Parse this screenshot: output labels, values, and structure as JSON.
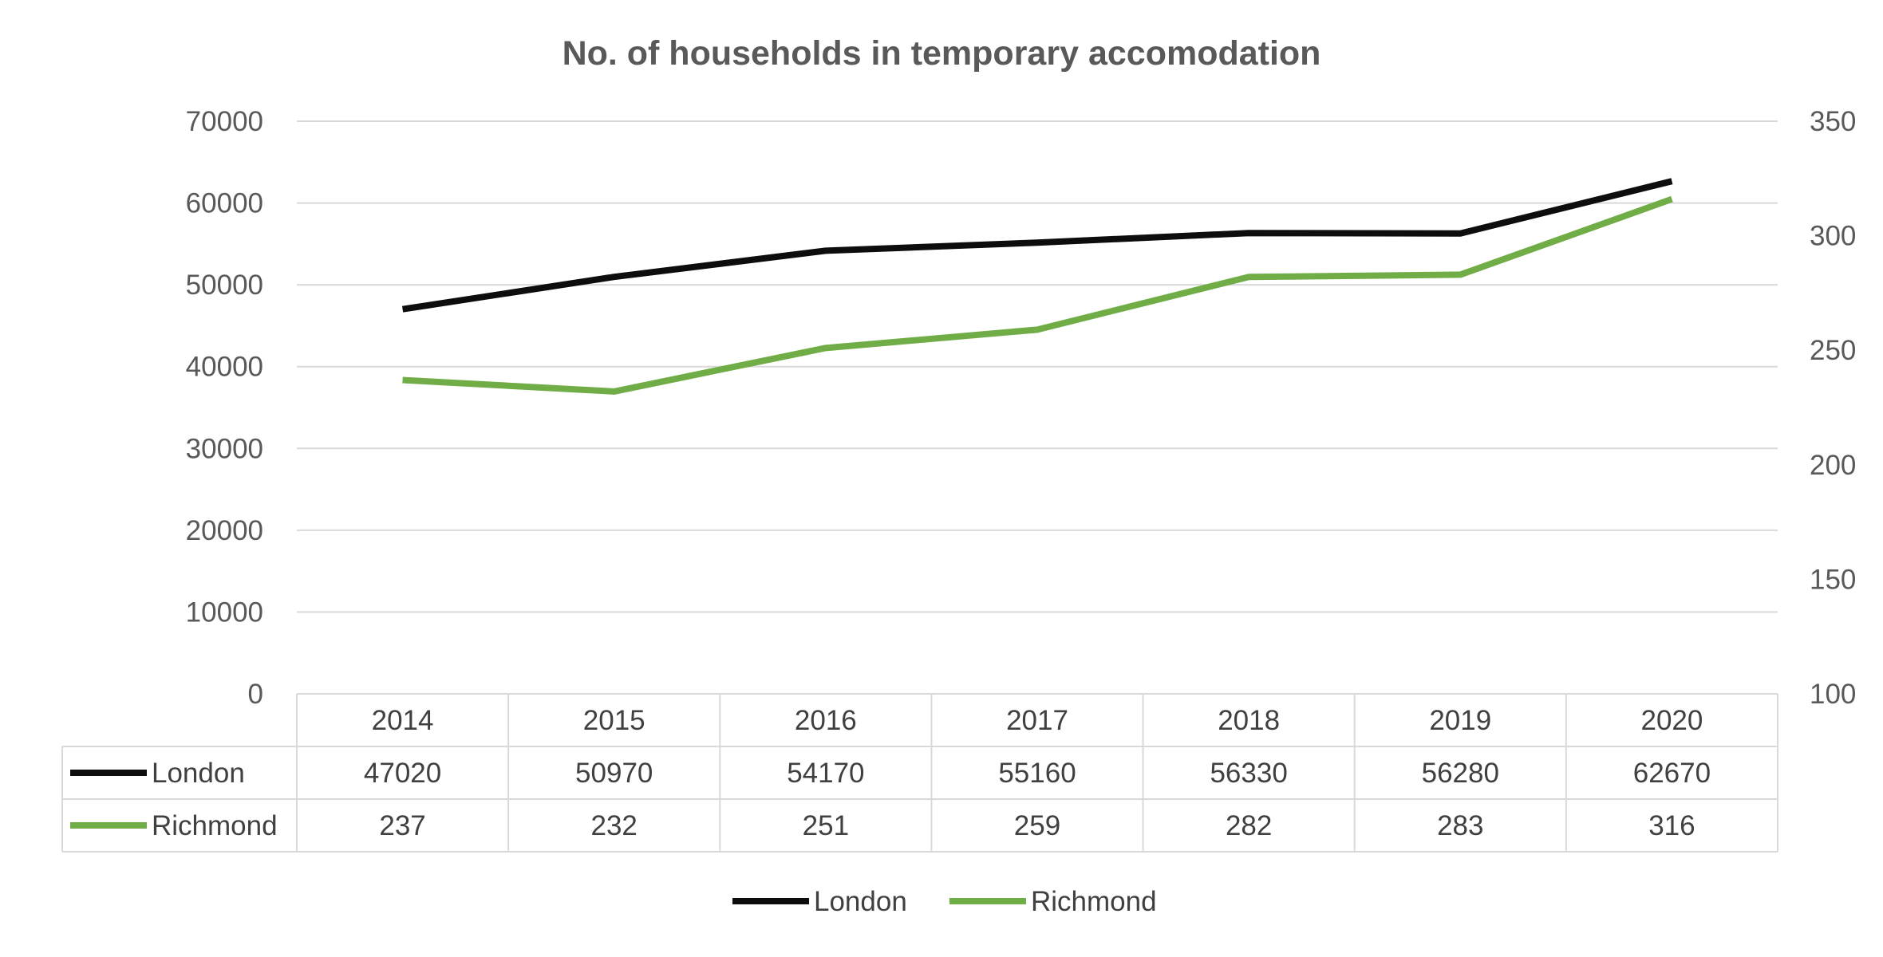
{
  "chart_data": {
    "type": "line",
    "title": "No. of households in temporary accomodation",
    "categories": [
      "2014",
      "2015",
      "2016",
      "2017",
      "2018",
      "2019",
      "2020"
    ],
    "series": [
      {
        "name": "London",
        "axis": "left",
        "color": "#0d0d0d",
        "values": [
          47020,
          50970,
          54170,
          55160,
          56330,
          56280,
          62670
        ]
      },
      {
        "name": "Richmond",
        "axis": "right",
        "color": "#70ad47",
        "values": [
          237,
          232,
          251,
          259,
          282,
          283,
          316
        ]
      }
    ],
    "y_left": {
      "min": 0,
      "max": 70000,
      "ticks": [
        "0",
        "10000",
        "20000",
        "30000",
        "40000",
        "50000",
        "60000",
        "70000"
      ]
    },
    "y_right": {
      "min": 100,
      "max": 350,
      "ticks": [
        "100",
        "150",
        "200",
        "250",
        "300",
        "350"
      ]
    },
    "grid": true,
    "data_table": true,
    "legend_position": "bottom"
  }
}
